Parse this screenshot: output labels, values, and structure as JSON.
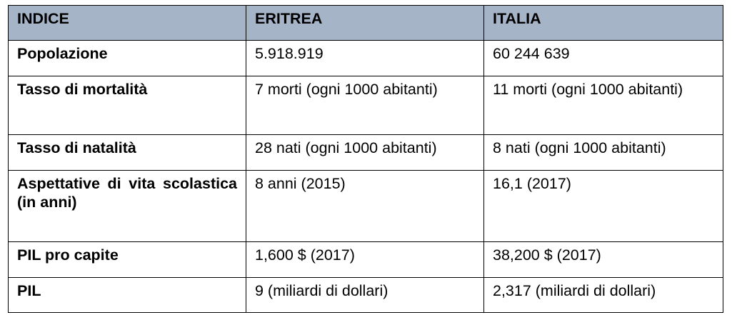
{
  "header_color": "#a6b4c8",
  "columns": [
    "INDICE",
    "ERITREA",
    "ITALIA"
  ],
  "rows": [
    {
      "indice": "Popolazione",
      "eritrea": "5.918.919",
      "italia": "60 244 639"
    },
    {
      "indice": "Tasso di mortalità",
      "eritrea": "7 morti (ogni 1000 abitanti)",
      "italia": "11 morti (ogni 1000 abitanti)"
    },
    {
      "indice": "Tasso di natalità",
      "eritrea": "28 nati (ogni 1000 abitanti)",
      "italia": "8 nati (ogni 1000 abitanti)"
    },
    {
      "indice": "Aspettative di vita scolastica (in anni)",
      "eritrea": "8 anni (2015)",
      "italia": "16,1 (2017)"
    },
    {
      "indice": "PIL pro capite",
      "eritrea": "1,600 $ (2017)",
      "italia": "38,200 $ (2017)"
    },
    {
      "indice": "PIL",
      "eritrea": "9 (miliardi di dollari)",
      "italia": "2,317 (miliardi di dollari)"
    }
  ]
}
